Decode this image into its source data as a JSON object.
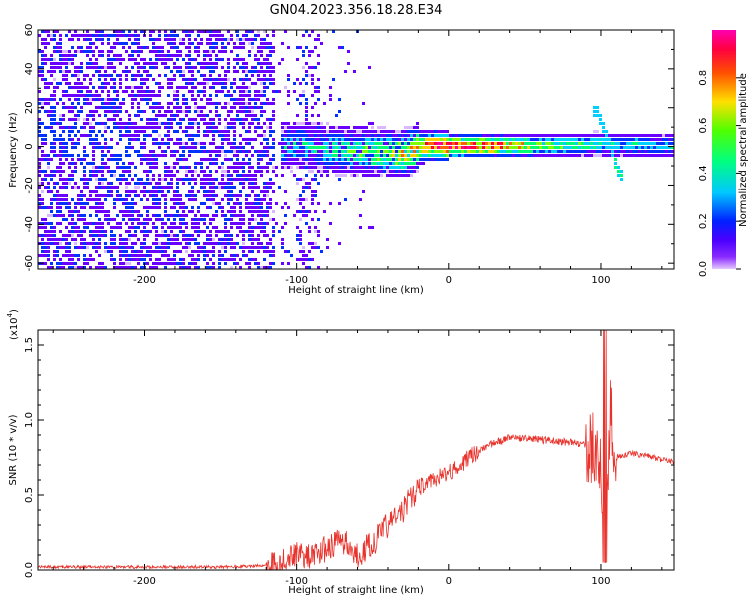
{
  "title": "GN04.2023.356.18.28.E34",
  "chart_data": [
    {
      "type": "heatmap",
      "xlabel": "Height of straight line (km)",
      "ylabel": "Frequency (Hz)",
      "xlim": [
        -270,
        148
      ],
      "ylim": [
        -63,
        60
      ],
      "xticks": [
        -200,
        -100,
        0,
        100
      ],
      "yticks": [
        60,
        40,
        20,
        0,
        -20,
        -40,
        -60
      ],
      "colorbar": {
        "label": "Normalized spectral amplitude",
        "range": [
          0,
          1
        ],
        "ticks": [
          "0.0",
          "0.2",
          "0.4",
          "0.6",
          "0.8"
        ],
        "colors": [
          "#d9b8ff",
          "#6a00ff",
          "#0033ff",
          "#00d0ff",
          "#00ff70",
          "#7fff00",
          "#ffd000",
          "#ff6000",
          "#ff0040",
          "#ff00a0"
        ]
      },
      "description_points": {
        "band_center_hz": [
          [
            -100,
            0
          ],
          [
            -60,
            -3
          ],
          [
            -30,
            -4
          ],
          [
            -15,
            0
          ],
          [
            50,
            0
          ],
          [
            100,
            1
          ],
          [
            148,
            0
          ]
        ],
        "band_peak_amplitude": [
          [
            -100,
            0.35
          ],
          [
            -70,
            0.45
          ],
          [
            -40,
            0.6
          ],
          [
            -20,
            0.8
          ],
          [
            0,
            0.9
          ],
          [
            30,
            0.85
          ],
          [
            60,
            0.55
          ],
          [
            100,
            0.4
          ],
          [
            148,
            0.35
          ]
        ],
        "sweep_at_x": [
          [
            98,
            17
          ],
          [
            105,
            3
          ],
          [
            112,
            -15
          ]
        ]
      }
    },
    {
      "type": "line",
      "xlabel": "Height of straight line (km)",
      "ylabel": "SNR (10 * v/v)",
      "multiplier": "(x10",
      "multiplier_exp": "4",
      "xlim": [
        -270,
        148
      ],
      "ylim": [
        0,
        1.6
      ],
      "xticks": [
        -200,
        -100,
        0,
        100
      ],
      "yticks": [
        "0.0",
        "0.5",
        "1.0",
        "1.5"
      ],
      "color": "#e8322b",
      "series": [
        {
          "x": [
            -270,
            -200,
            -150,
            -120,
            -110,
            -100,
            -90,
            -80,
            -70,
            -60,
            -50,
            -40,
            -30,
            -20,
            -10,
            0,
            10,
            20,
            30,
            40,
            60,
            80,
            95,
            100,
            103,
            106,
            110,
            120,
            148
          ],
          "values": [
            0.02,
            0.02,
            0.02,
            0.03,
            0.06,
            0.12,
            0.08,
            0.15,
            0.2,
            0.1,
            0.18,
            0.3,
            0.4,
            0.55,
            0.6,
            0.65,
            0.72,
            0.8,
            0.85,
            0.88,
            0.87,
            0.85,
            0.82,
            0.75,
            0.1,
            1.05,
            0.75,
            0.78,
            0.72
          ]
        }
      ]
    }
  ]
}
